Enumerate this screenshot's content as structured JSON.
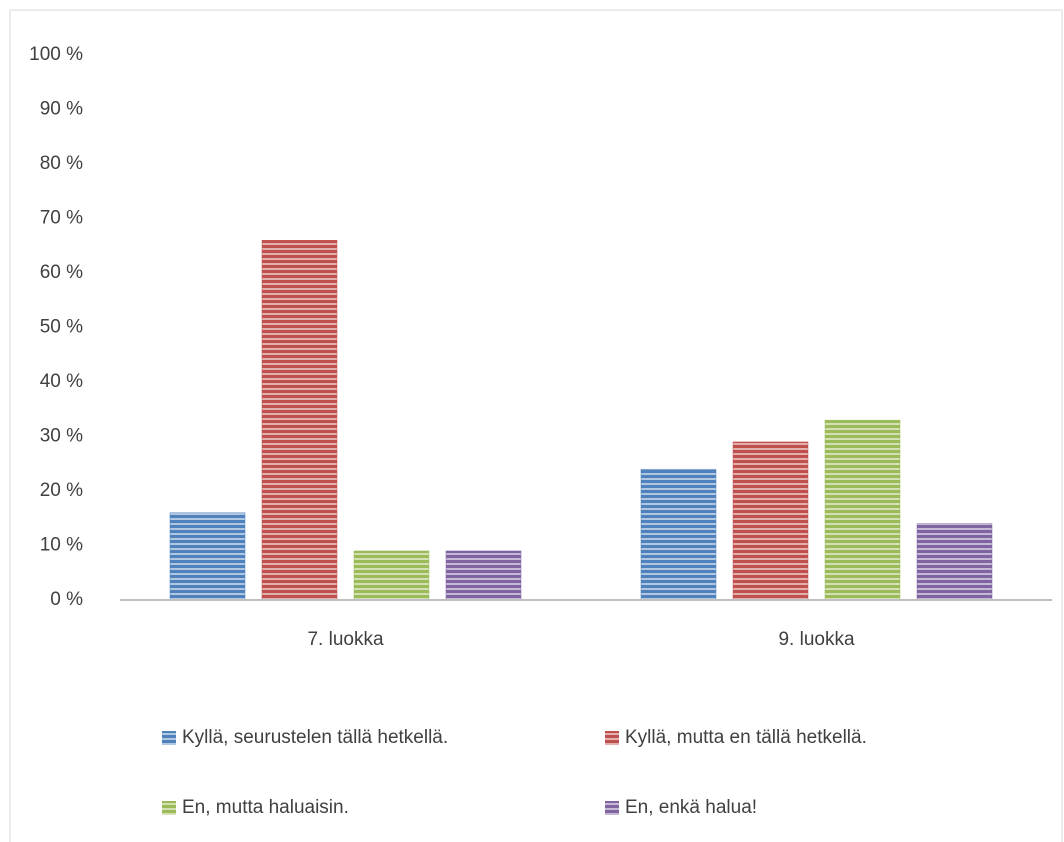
{
  "chart_data": {
    "type": "bar",
    "categories": [
      "7. luokka",
      "9. luokka"
    ],
    "series": [
      {
        "name": "Kyllä, seurustelen tällä hetkellä.",
        "color": "#4f81bd",
        "values": [
          16,
          24
        ]
      },
      {
        "name": "Kyllä, mutta en tällä hetkellä.",
        "color": "#c0504d",
        "values": [
          66,
          29
        ]
      },
      {
        "name": "En, mutta haluaisin.",
        "color": "#9bbb59",
        "values": [
          9,
          33
        ]
      },
      {
        "name": "En, enkä halua!",
        "color": "#8064a2",
        "values": [
          9,
          14
        ]
      }
    ],
    "ylim": [
      0,
      100
    ],
    "yticks": [
      {
        "value": 0,
        "label": "0 %"
      },
      {
        "value": 10,
        "label": "10 %"
      },
      {
        "value": 20,
        "label": "20 %"
      },
      {
        "value": 30,
        "label": "30 %"
      },
      {
        "value": 40,
        "label": "40 %"
      },
      {
        "value": 50,
        "label": "50 %"
      },
      {
        "value": 60,
        "label": "60 %"
      },
      {
        "value": 70,
        "label": "70 %"
      },
      {
        "value": 80,
        "label": "80 %"
      },
      {
        "value": 90,
        "label": "90 %"
      },
      {
        "value": 100,
        "label": "100 %"
      }
    ],
    "grid": false,
    "legend": "bottom"
  }
}
